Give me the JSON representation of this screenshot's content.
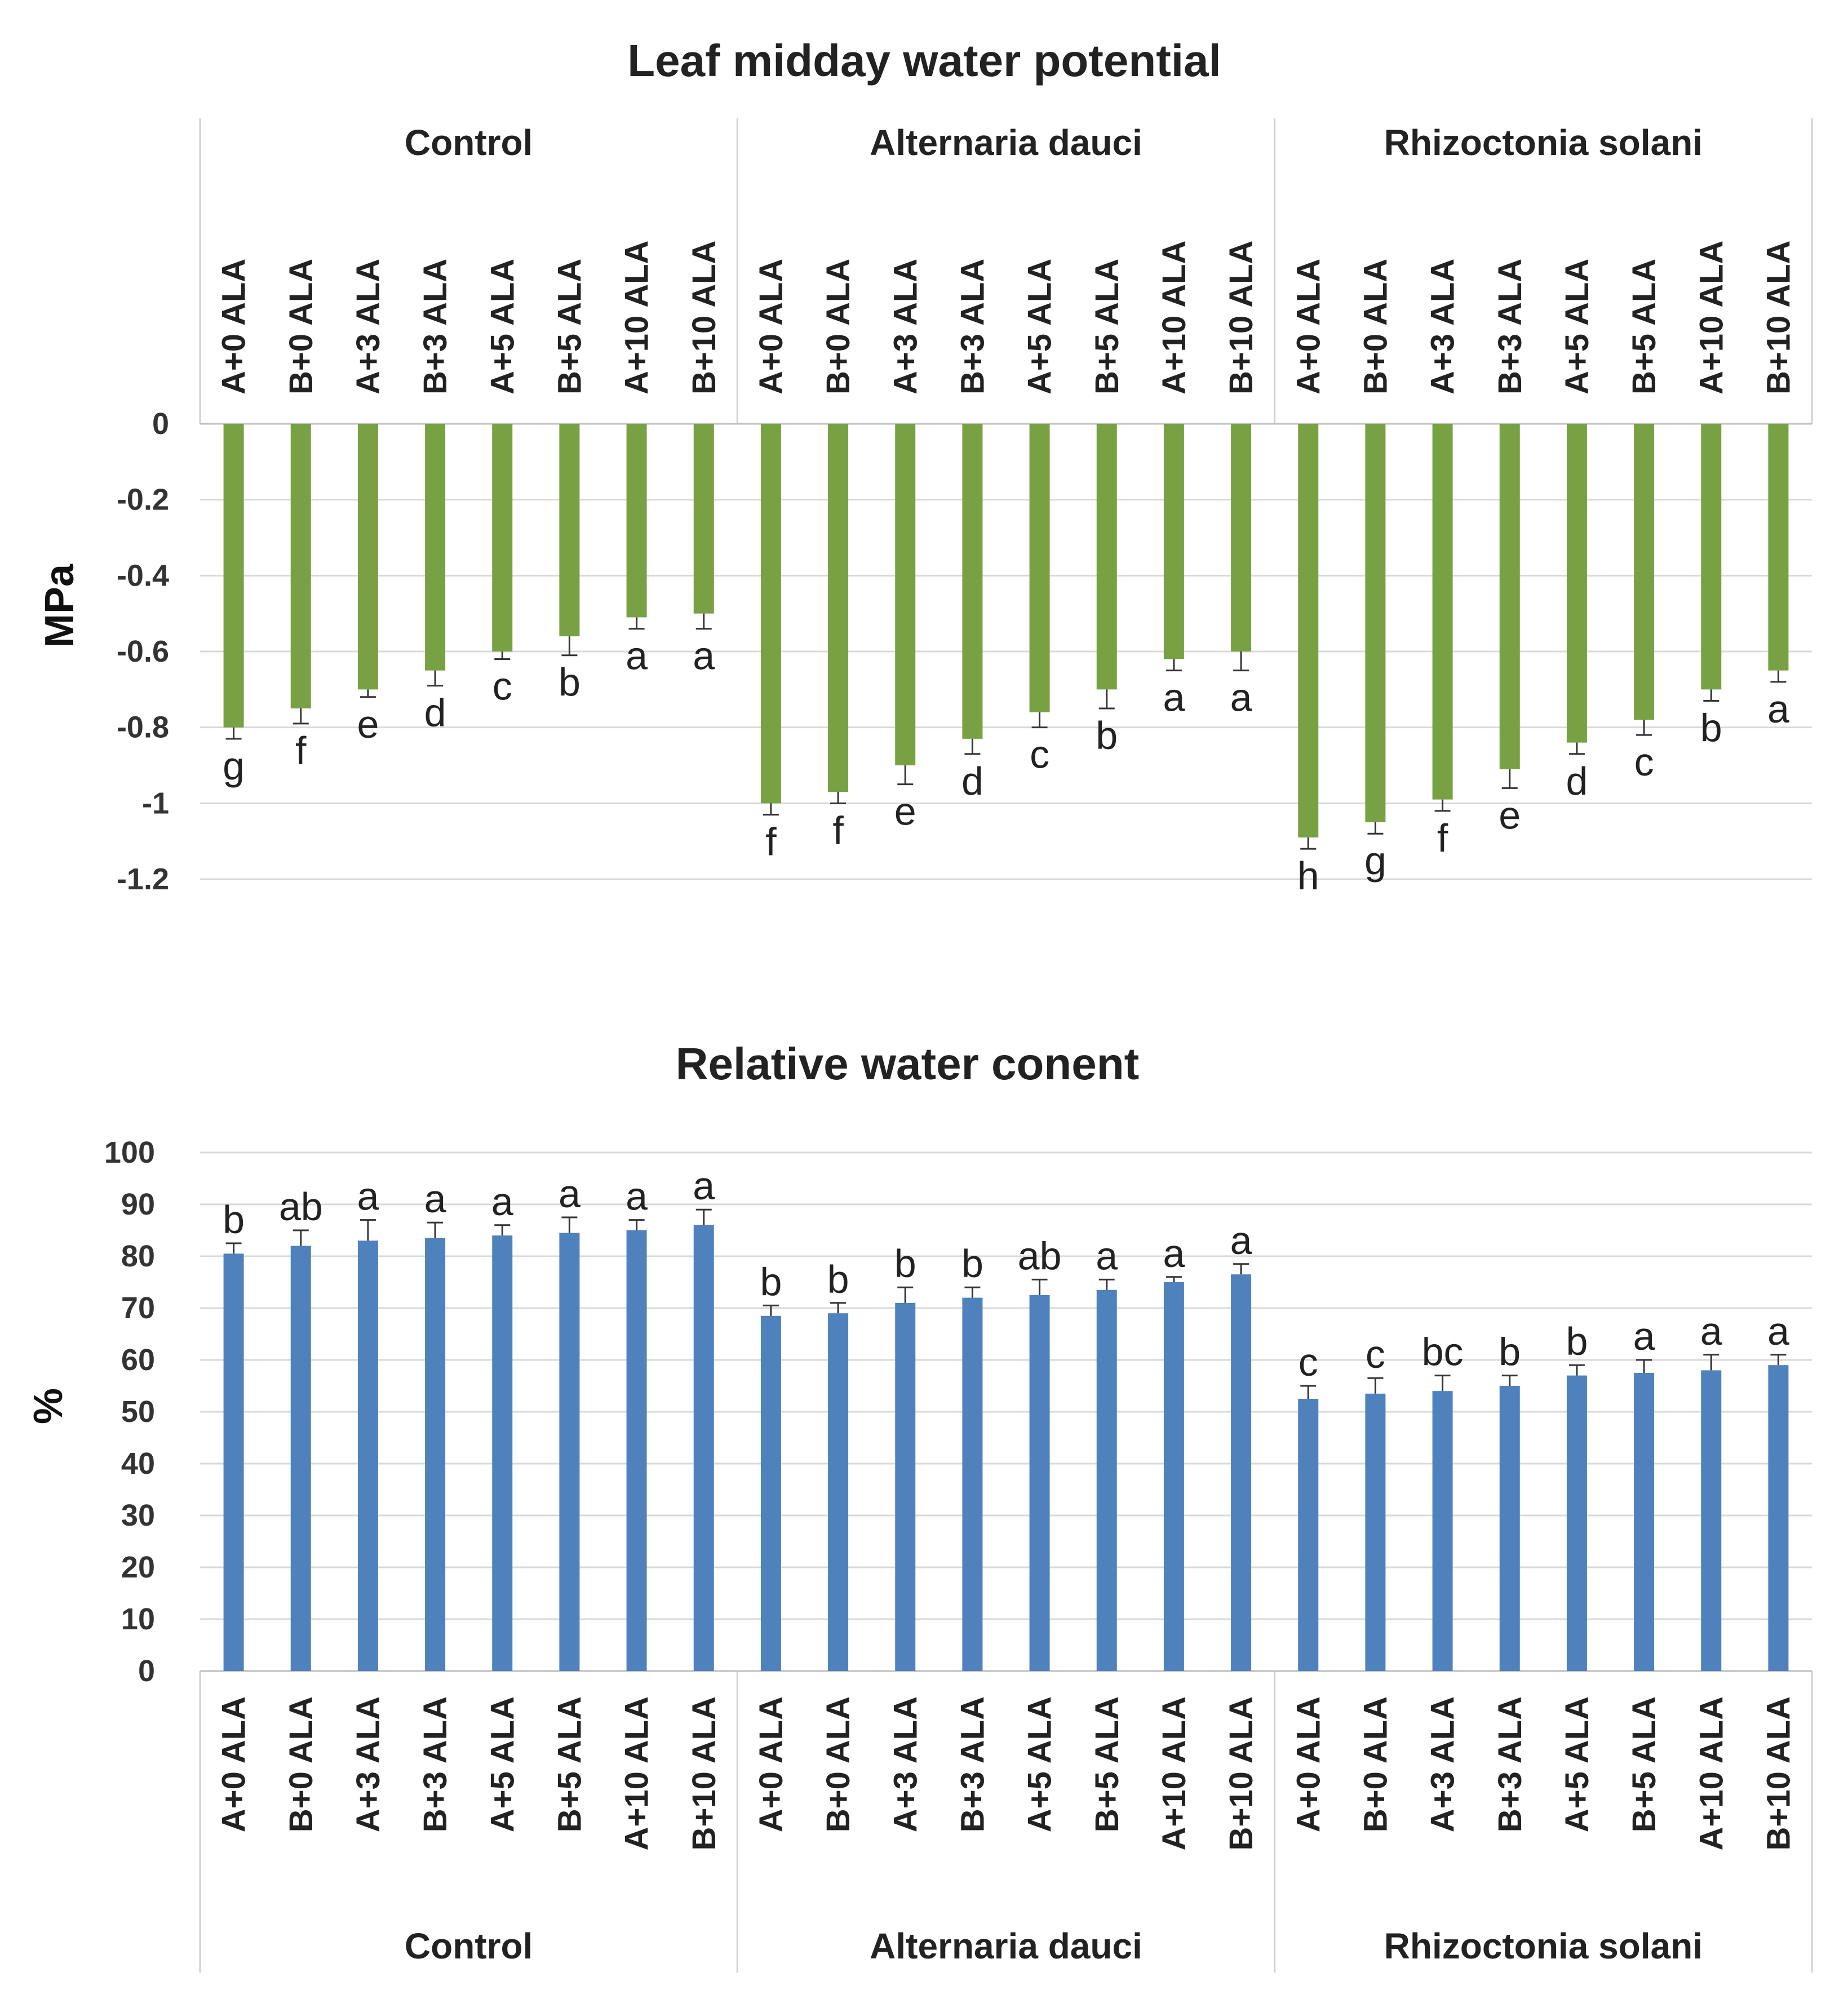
{
  "chart_data": [
    {
      "type": "bar",
      "title": "Leaf midday water potential",
      "ylabel": "MPa",
      "xlabel": "",
      "ylim": [
        -1.2,
        0
      ],
      "yticks": [
        0,
        -0.2,
        -0.4,
        -0.6,
        -0.8,
        -1,
        -1.2
      ],
      "ytick_labels": [
        "0",
        "-0.2",
        "-0.4",
        "-0.6",
        "-0.8",
        "-1",
        "-1.2"
      ],
      "grid": true,
      "category_axis_position": "top",
      "groups": [
        "Control",
        "Alternaria dauci",
        "Rhizoctonia  solani"
      ],
      "categories": [
        "A+0 ALA",
        "B+0 ALA",
        "A+3 ALA",
        "B+3 ALA",
        "A+5 ALA",
        "B+5 ALA",
        "A+10 ALA",
        "B+10 ALA"
      ],
      "series": [
        {
          "name": "Control",
          "values": [
            -0.8,
            -0.75,
            -0.7,
            -0.65,
            -0.6,
            -0.56,
            -0.51,
            -0.5
          ],
          "errors": [
            0.03,
            0.04,
            0.02,
            0.04,
            0.02,
            0.05,
            0.03,
            0.04
          ],
          "letters": [
            "g",
            "f",
            "e",
            "d",
            "c",
            "b",
            "a",
            "a"
          ]
        },
        {
          "name": "Alternaria dauci",
          "values": [
            -1.0,
            -0.97,
            -0.9,
            -0.83,
            -0.76,
            -0.7,
            -0.62,
            -0.6
          ],
          "errors": [
            0.03,
            0.03,
            0.05,
            0.04,
            0.04,
            0.05,
            0.03,
            0.05
          ],
          "letters": [
            "f",
            "f",
            "e",
            "d",
            "c",
            "b",
            "a",
            "a"
          ]
        },
        {
          "name": "Rhizoctonia  solani",
          "values": [
            -1.09,
            -1.05,
            -0.99,
            -0.91,
            -0.84,
            -0.78,
            -0.7,
            -0.65
          ],
          "errors": [
            0.03,
            0.03,
            0.03,
            0.05,
            0.03,
            0.04,
            0.03,
            0.03
          ],
          "letters": [
            "h",
            "g",
            "f",
            "e",
            "d",
            "c",
            "b",
            "a"
          ]
        }
      ],
      "bar_color": "#77A143"
    },
    {
      "type": "bar",
      "title": "Relative water conent",
      "ylabel": "%",
      "xlabel": "",
      "ylim": [
        0,
        100
      ],
      "yticks": [
        0,
        10,
        20,
        30,
        40,
        50,
        60,
        70,
        80,
        90,
        100
      ],
      "ytick_labels": [
        "0",
        "10",
        "20",
        "30",
        "40",
        "50",
        "60",
        "70",
        "80",
        "90",
        "100"
      ],
      "grid": true,
      "category_axis_position": "bottom",
      "groups": [
        "Control",
        "Alternaria dauci",
        "Rhizoctonia  solani"
      ],
      "categories": [
        "A+0 ALA",
        "B+0 ALA",
        "A+3 ALA",
        "B+3 ALA",
        "A+5 ALA",
        "B+5 ALA",
        "A+10 ALA",
        "B+10 ALA"
      ],
      "series": [
        {
          "name": "Control",
          "values": [
            80.5,
            82,
            83,
            83.5,
            84,
            84.5,
            85,
            86
          ],
          "errors": [
            2,
            3,
            4,
            3,
            2,
            3,
            2,
            3
          ],
          "letters": [
            "b",
            "ab",
            "a",
            "a",
            "a",
            "a",
            "a",
            "a"
          ]
        },
        {
          "name": "Alternaria dauci",
          "values": [
            68.5,
            69,
            71,
            72,
            72.5,
            73.5,
            75,
            76.5
          ],
          "errors": [
            2,
            2,
            3,
            2,
            3,
            2,
            1,
            2
          ],
          "letters": [
            "b",
            "b",
            "b",
            "b",
            "ab",
            "a",
            "a",
            "a"
          ]
        },
        {
          "name": "Rhizoctonia  solani",
          "values": [
            52.5,
            53.5,
            54,
            55,
            57,
            57.5,
            58,
            59
          ],
          "errors": [
            2.5,
            3,
            3,
            2,
            2,
            2.5,
            3,
            2
          ],
          "letters": [
            "c",
            "c",
            "bc",
            "b",
            "b",
            "a",
            "a",
            "a"
          ]
        }
      ],
      "bar_color": "#4F81BD"
    }
  ]
}
